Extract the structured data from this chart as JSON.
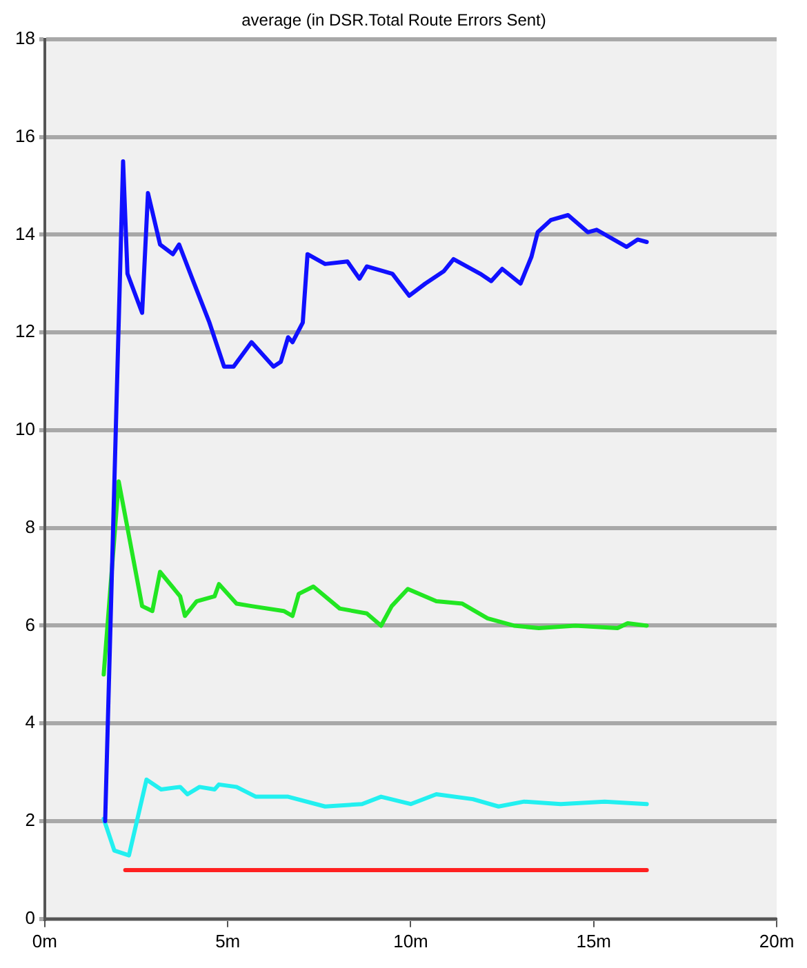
{
  "chart_data": {
    "type": "line",
    "title": "average (in DSR.Total Route Errors Sent)",
    "xlim": [
      0,
      20
    ],
    "xticks": [
      {
        "value": 0,
        "label": "0m"
      },
      {
        "value": 5,
        "label": "5m"
      },
      {
        "value": 10,
        "label": "10m"
      },
      {
        "value": 15,
        "label": "15m"
      },
      {
        "value": 20,
        "label": "20m"
      }
    ],
    "ylim": [
      0,
      18
    ],
    "yticks": [
      0,
      2,
      4,
      6,
      8,
      10,
      12,
      14,
      16,
      18
    ],
    "grid": "y",
    "legend": false,
    "marker": "none",
    "line_style": "solid",
    "series": [
      {
        "color": "#1010ff",
        "x": [
          1.65,
          2.14,
          2.26,
          2.66,
          2.82,
          3.15,
          3.5,
          3.67,
          4.03,
          4.5,
          4.9,
          5.16,
          5.65,
          6.25,
          6.45,
          6.65,
          6.77,
          7.05,
          7.18,
          7.66,
          8.27,
          8.6,
          8.8,
          9.5,
          9.96,
          10.4,
          10.9,
          11.17,
          11.9,
          12.2,
          12.5,
          13.0,
          13.3,
          13.47,
          13.83,
          14.3,
          14.84,
          15.08,
          15.9,
          16.2,
          16.45
        ],
        "values": [
          2.0,
          15.5,
          13.2,
          12.4,
          14.85,
          13.8,
          13.6,
          13.8,
          13.1,
          12.2,
          11.3,
          11.3,
          11.8,
          11.3,
          11.4,
          11.9,
          11.8,
          12.2,
          13.6,
          13.4,
          13.45,
          13.1,
          13.35,
          13.2,
          12.75,
          13.0,
          13.25,
          13.5,
          13.2,
          13.05,
          13.3,
          13.0,
          13.55,
          14.05,
          14.3,
          14.4,
          14.05,
          14.1,
          13.75,
          13.9,
          13.85
        ]
      },
      {
        "color": "#22e622",
        "x": [
          1.61,
          2.02,
          2.26,
          2.66,
          2.94,
          3.15,
          3.7,
          3.83,
          4.15,
          4.64,
          4.76,
          5.24,
          5.65,
          6.53,
          6.77,
          6.94,
          7.34,
          8.06,
          8.8,
          9.19,
          9.48,
          9.92,
          10.7,
          11.41,
          12.1,
          12.82,
          13.5,
          14.5,
          15.65,
          15.93,
          16.45
        ],
        "values": [
          5.0,
          8.95,
          8.0,
          6.4,
          6.3,
          7.1,
          6.6,
          6.2,
          6.5,
          6.6,
          6.85,
          6.45,
          6.4,
          6.3,
          6.2,
          6.65,
          6.8,
          6.35,
          6.25,
          6.0,
          6.4,
          6.75,
          6.5,
          6.45,
          6.15,
          6.0,
          5.95,
          6.0,
          5.95,
          6.05,
          6.0
        ]
      },
      {
        "color": "#22f0f0",
        "x": [
          1.61,
          1.9,
          2.3,
          2.78,
          3.18,
          3.7,
          3.9,
          4.23,
          4.64,
          4.76,
          5.24,
          5.77,
          6.65,
          7.66,
          8.67,
          9.19,
          10.0,
          10.7,
          11.7,
          12.4,
          13.1,
          14.1,
          15.3,
          16.45
        ],
        "values": [
          2.05,
          1.4,
          1.3,
          2.85,
          2.65,
          2.7,
          2.55,
          2.7,
          2.65,
          2.75,
          2.7,
          2.5,
          2.5,
          2.3,
          2.35,
          2.5,
          2.35,
          2.55,
          2.45,
          2.3,
          2.4,
          2.35,
          2.4,
          2.35
        ]
      },
      {
        "color": "#ff2020",
        "x": [
          2.2,
          16.45
        ],
        "values": [
          1.0,
          1.0
        ]
      }
    ]
  }
}
